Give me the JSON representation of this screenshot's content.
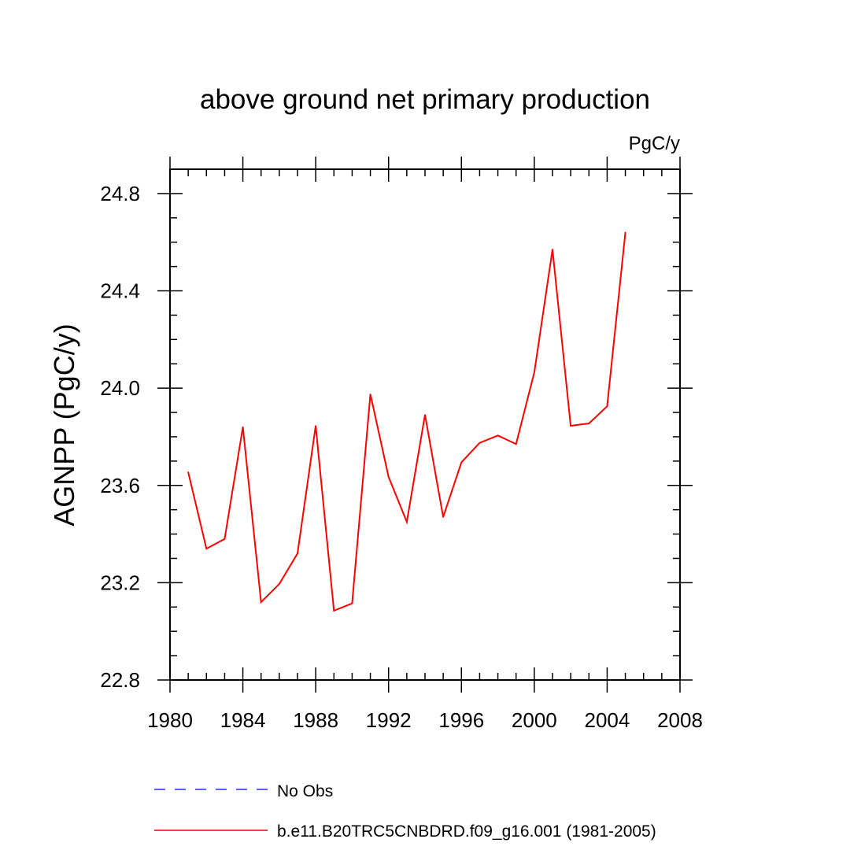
{
  "chart_data": {
    "type": "line",
    "title": "above ground net primary production",
    "units_label": "PgC/y",
    "xlabel": "",
    "ylabel": "AGNPP  (PgC/y)",
    "xlim": [
      1980,
      2008
    ],
    "ylim": [
      22.8,
      24.9
    ],
    "x_ticks": [
      1980,
      1984,
      1988,
      1992,
      1996,
      2000,
      2004,
      2008
    ],
    "x_tick_labels": [
      "1980",
      "1984",
      "1988",
      "1992",
      "1996",
      "2000",
      "2004",
      "2008"
    ],
    "y_ticks": [
      22.8,
      23.2,
      23.6,
      24.0,
      24.4,
      24.8
    ],
    "y_tick_labels": [
      "22.8",
      "23.2",
      "23.6",
      "24.0",
      "24.4",
      "24.8"
    ],
    "grid": false,
    "legend_position": "bottom",
    "series": [
      {
        "name": "b.e11.B20TRC5CNBDRD.f09_g16.001 (1981-2005)",
        "color": "#ff0000",
        "style": "solid",
        "x": [
          1981,
          1982,
          1983,
          1984,
          1985,
          1986,
          1987,
          1988,
          1989,
          1990,
          1991,
          1992,
          1993,
          1994,
          1995,
          1996,
          1997,
          1998,
          1999,
          2000,
          2001,
          2002,
          2003,
          2004,
          2005
        ],
        "y": [
          23.655,
          23.34,
          23.38,
          23.84,
          23.12,
          23.195,
          23.32,
          23.845,
          23.085,
          23.115,
          23.975,
          23.635,
          23.45,
          23.89,
          23.47,
          23.695,
          23.775,
          23.805,
          23.77,
          24.065,
          24.57,
          23.845,
          23.855,
          23.925,
          24.64
        ]
      }
    ],
    "legend": [
      {
        "label": "No Obs",
        "color": "#0000ff",
        "style": "dashed"
      },
      {
        "label": "b.e11.B20TRC5CNBDRD.f09_g16.001 (1981-2005)",
        "color": "#ff0000",
        "style": "solid"
      }
    ]
  }
}
